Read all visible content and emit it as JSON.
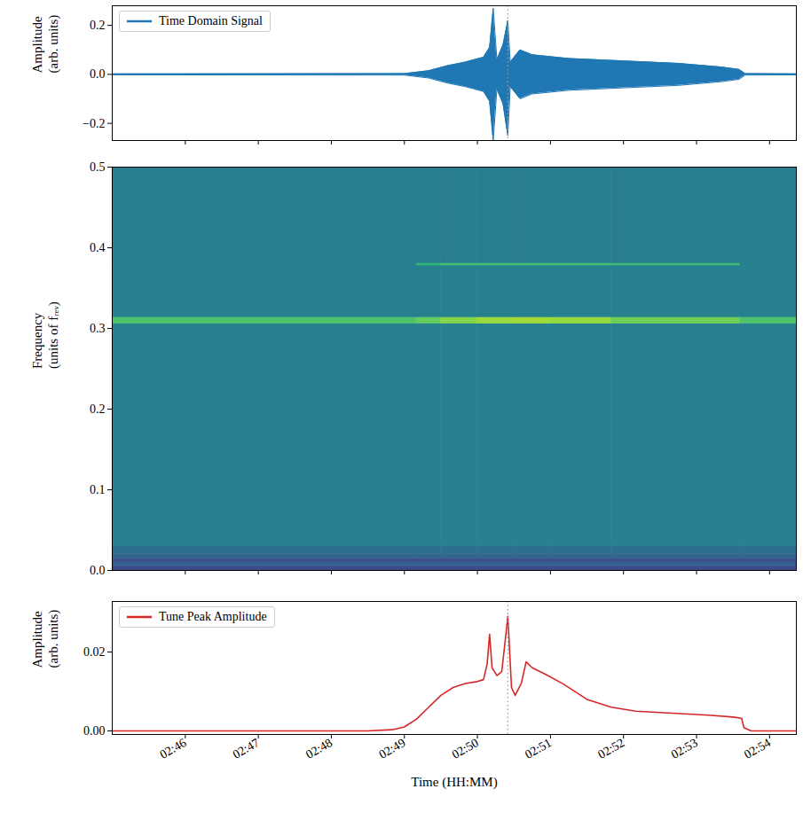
{
  "chart_data": [
    {
      "type": "area",
      "ylabel": "Amplitude (arb. units)",
      "legend": "upper left",
      "tick_labels": "y",
      "x": [
        "02:45:00",
        "02:49:00",
        "02:49:20",
        "02:49:35",
        "02:49:50",
        "02:50:05",
        "02:50:10",
        "02:50:13",
        "02:50:16",
        "02:50:21",
        "02:50:25",
        "02:50:27",
        "02:50:35",
        "02:50:45",
        "02:51:15",
        "02:52:00",
        "02:52:45",
        "02:53:20",
        "02:53:35",
        "02:53:40",
        "02:54:22"
      ],
      "series": [
        {
          "name": "Time Domain Signal",
          "color": "#1f77b4",
          "values_high": [
            0.002,
            0.003,
            0.015,
            0.035,
            0.05,
            0.07,
            0.11,
            0.27,
            0.06,
            0.12,
            0.22,
            0.05,
            0.1,
            0.08,
            0.065,
            0.055,
            0.045,
            0.03,
            0.02,
            0.003,
            0.002
          ],
          "values_low": [
            -0.002,
            -0.003,
            -0.015,
            -0.035,
            -0.05,
            -0.07,
            -0.11,
            -0.27,
            -0.06,
            -0.12,
            -0.25,
            -0.05,
            -0.1,
            -0.08,
            -0.065,
            -0.055,
            -0.045,
            -0.03,
            -0.02,
            -0.003,
            -0.002
          ]
        }
      ],
      "vline": {
        "x": "02:50:25",
        "line_style": "dotted"
      },
      "xlim": [
        "02:45:00",
        "02:54:22"
      ],
      "xticks": [
        "02:46",
        "02:47",
        "02:48",
        "02:49",
        "02:50",
        "02:51",
        "02:52",
        "02:53",
        "02:54"
      ],
      "ylim": [
        -0.27,
        0.28
      ],
      "yticks": [
        {
          "value": -0.2,
          "label": "−0.2"
        },
        {
          "value": 0,
          "label": "0.0"
        },
        {
          "value": 0.2,
          "label": "0.2"
        }
      ]
    },
    {
      "type": "heatmap",
      "ylabel": "Frequency (units of fᵣₑᵥ)",
      "tick_labels": "y",
      "color": "viridis",
      "zlim": [
        0,
        1
      ],
      "x_edges": [
        "02:45:00",
        "02:49:10",
        "02:49:30",
        "02:50:00",
        "02:50:30",
        "02:51:00",
        "02:51:50",
        "02:53:36",
        "02:54:22"
      ],
      "y_edges": [
        0,
        0.005,
        0.01,
        0.015,
        0.02,
        0.03,
        0.306,
        0.314,
        0.378,
        0.381,
        0.5
      ],
      "z": [
        [
          0.22,
          0.22,
          0.22,
          0.22,
          0.22,
          0.22,
          0.22,
          0.22
        ],
        [
          0.3,
          0.3,
          0.3,
          0.3,
          0.3,
          0.3,
          0.3,
          0.3
        ],
        [
          0.24,
          0.24,
          0.24,
          0.24,
          0.24,
          0.24,
          0.24,
          0.24
        ],
        [
          0.32,
          0.32,
          0.32,
          0.32,
          0.32,
          0.32,
          0.32,
          0.32
        ],
        [
          0.36,
          0.36,
          0.36,
          0.36,
          0.36,
          0.36,
          0.36,
          0.36
        ],
        [
          0.43,
          0.43,
          0.43,
          0.43,
          0.43,
          0.43,
          0.43,
          0.43
        ],
        [
          0.72,
          0.76,
          0.82,
          0.85,
          0.86,
          0.84,
          0.78,
          0.72
        ],
        [
          0.43,
          0.43,
          0.43,
          0.43,
          0.43,
          0.43,
          0.43,
          0.43
        ],
        [
          0.43,
          0.66,
          0.7,
          0.7,
          0.7,
          0.7,
          0.68,
          0.43
        ],
        [
          0.42,
          0.42,
          0.42,
          0.42,
          0.42,
          0.42,
          0.42,
          0.42
        ]
      ],
      "xlim": [
        "02:45:00",
        "02:54:22"
      ],
      "xticks": [
        "02:46",
        "02:47",
        "02:48",
        "02:49",
        "02:50",
        "02:51",
        "02:52",
        "02:53",
        "02:54"
      ],
      "ylim": [
        0,
        0.5
      ],
      "yticks": [
        {
          "value": 0,
          "label": "0.0"
        },
        0.1,
        0.2,
        0.3,
        0.4,
        0.5
      ]
    },
    {
      "type": "line",
      "xlabel": "Time (HH:MM)",
      "ylabel": "Amplitude (arb. units)",
      "legend": "upper left",
      "x": [
        "02:45:00",
        "02:48:30",
        "02:48:50",
        "02:49:00",
        "02:49:10",
        "02:49:20",
        "02:49:30",
        "02:49:40",
        "02:49:50",
        "02:50:00",
        "02:50:05",
        "02:50:08",
        "02:50:10",
        "02:50:12",
        "02:50:16",
        "02:50:20",
        "02:50:25",
        "02:50:28",
        "02:50:31",
        "02:50:36",
        "02:50:40",
        "02:50:45",
        "02:50:55",
        "02:51:10",
        "02:51:30",
        "02:51:50",
        "02:52:10",
        "02:52:40",
        "02:53:10",
        "02:53:30",
        "02:53:37",
        "02:53:39",
        "02:53:45",
        "02:54:22"
      ],
      "series": [
        {
          "name": "Tune Peak Amplitude",
          "color": "#d62728",
          "values": [
            0.0,
            0.0,
            0.0003,
            0.001,
            0.003,
            0.006,
            0.009,
            0.011,
            0.012,
            0.0125,
            0.013,
            0.017,
            0.0245,
            0.016,
            0.014,
            0.015,
            0.029,
            0.011,
            0.009,
            0.012,
            0.0175,
            0.016,
            0.0145,
            0.012,
            0.008,
            0.006,
            0.005,
            0.0045,
            0.004,
            0.0035,
            0.0032,
            0.0008,
            0.0,
            0.0
          ]
        }
      ],
      "vline": {
        "x": "02:50:25",
        "line_style": "dotted"
      },
      "xlim": [
        "02:45:00",
        "02:54:22"
      ],
      "xticks": [
        "02:46",
        "02:47",
        "02:48",
        "02:49",
        "02:50",
        "02:51",
        "02:52",
        "02:53",
        "02:54"
      ],
      "ylim": [
        -0.0009,
        0.0328
      ],
      "yticks": [
        {
          "value": 0,
          "label": "0.00"
        },
        {
          "value": 0.02,
          "label": "0.02"
        }
      ]
    }
  ]
}
